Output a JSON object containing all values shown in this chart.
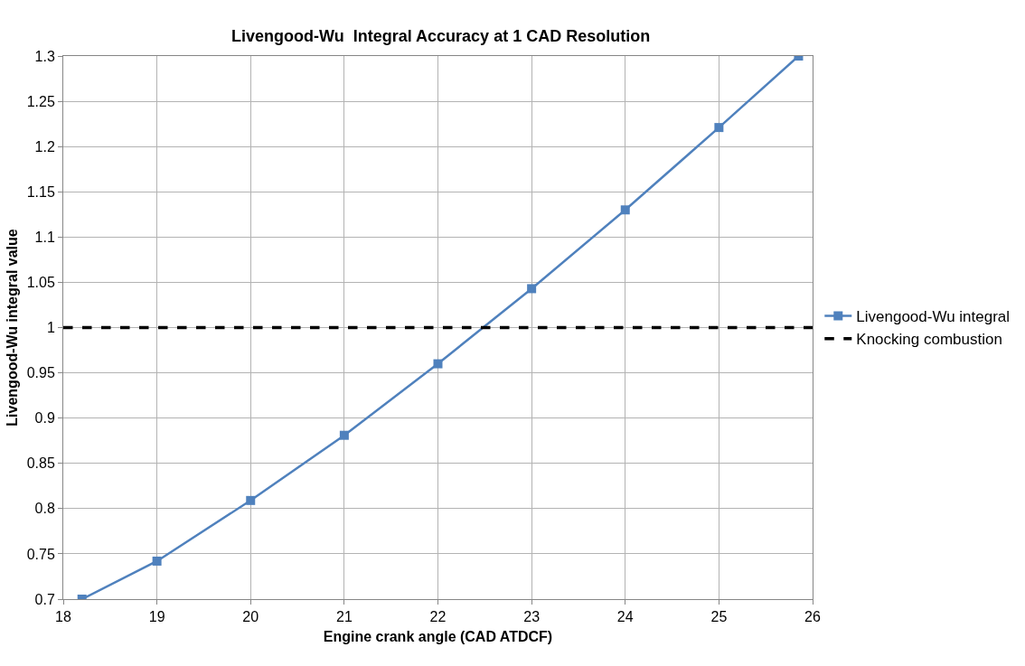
{
  "chart_data": {
    "type": "line",
    "title": "Livengood-Wu  Integral Accuracy at 1 CAD Resolution",
    "xlabel": "Engine crank angle (CAD ATDCF)",
    "ylabel": "Livengood-Wu integral value",
    "series": [
      {
        "name": "Livengood-Wu integral",
        "color": "#4f81bd",
        "x": [
          18.2,
          19,
          20,
          21,
          22,
          23,
          24,
          25,
          25.85
        ],
        "values": [
          0.7,
          0.742,
          0.809,
          0.881,
          0.96,
          1.043,
          1.13,
          1.221,
          1.3
        ],
        "marker": "square"
      }
    ],
    "ref_lines": [
      {
        "axis": "y",
        "value": 1,
        "label": "Knocking combustion",
        "color": "#000000",
        "line_style": "dashed"
      }
    ],
    "xlim": [
      18,
      26
    ],
    "xticks": [
      18,
      19,
      20,
      21,
      22,
      23,
      24,
      25,
      26
    ],
    "ylim": [
      0.7,
      1.3
    ],
    "yticks": [
      0.7,
      0.75,
      0.8,
      0.85,
      0.9,
      0.95,
      1,
      1.05,
      1.1,
      1.15,
      1.2,
      1.25,
      1.3
    ],
    "grid": true,
    "legend": "right",
    "line_style": "solid"
  }
}
